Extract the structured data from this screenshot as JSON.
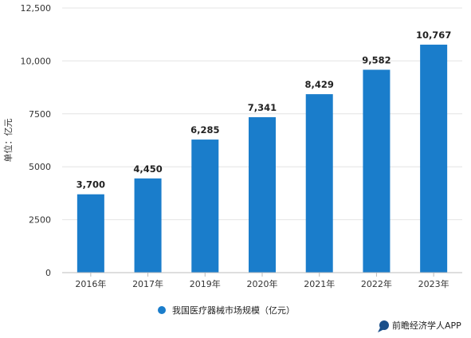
{
  "chart_data": {
    "type": "bar",
    "categories": [
      "2016年",
      "2017年",
      "2019年",
      "2020年",
      "2021年",
      "2022年",
      "2023年"
    ],
    "series": [
      {
        "name": "我国医疗器械市场规模（亿元）",
        "values": [
          3700,
          4450,
          6285,
          7341,
          8429,
          9582,
          10767
        ],
        "labels": [
          "3,700",
          "4,450",
          "6,285",
          "7,341",
          "8,429",
          "9,582",
          "10,767"
        ],
        "color": "#1a7dcb"
      }
    ],
    "ylabel": "单位：亿元",
    "ylim": [
      0,
      12500
    ],
    "yticks": [
      0,
      2500,
      5000,
      7500,
      10000,
      12500
    ],
    "ytick_labels": [
      "0",
      "2500",
      "5000",
      "7500",
      "10,000",
      "12,500"
    ],
    "grid": true,
    "legend_position": "bottom-center"
  },
  "credit": {
    "text": "前瞻经济学人APP",
    "icon": "chat-bubble-icon"
  },
  "colors": {
    "bar": "#1a7dcb",
    "grid": "#e4e4e4",
    "axis": "#bcbcbc"
  }
}
